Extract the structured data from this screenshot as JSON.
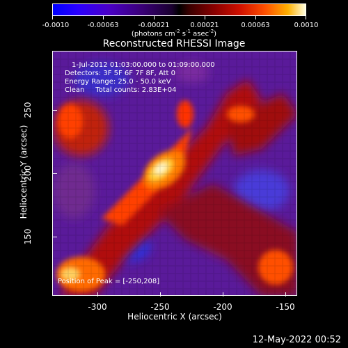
{
  "colorbar": {
    "ticks": [
      "-0.0010",
      "-0.00063",
      "-0.00021",
      "0.00021",
      "0.00063",
      "0.0010"
    ],
    "units": "(photons cm",
    "units_exp1": "-2",
    "units_mid": " s",
    "units_exp2": "-1",
    "units_mid2": " asec",
    "units_exp3": "-2",
    "units_end": ")"
  },
  "title": "Reconstructed RHESSI Image",
  "annotations": {
    "time_range": "1-Jul-2012 01:03:00.000 to 01:09:00.000",
    "detectors": "Detectors: 3F 5F 6F 7F 8F, Att 0",
    "energy": "Energy Range: 25.0 - 50.0 keV",
    "clean": "Clean     Total counts: 2.83E+04",
    "peak": "Position of Peak = [-250,208]"
  },
  "axes": {
    "xlabel": "Heliocentric X (arcsec)",
    "ylabel": "Heliocentric Y (arcsec)",
    "xticks": [
      "-300",
      "-250",
      "-200",
      "-150"
    ],
    "yticks": [
      "250",
      "200",
      "150"
    ]
  },
  "footer": "12-May-2022 00:52"
}
